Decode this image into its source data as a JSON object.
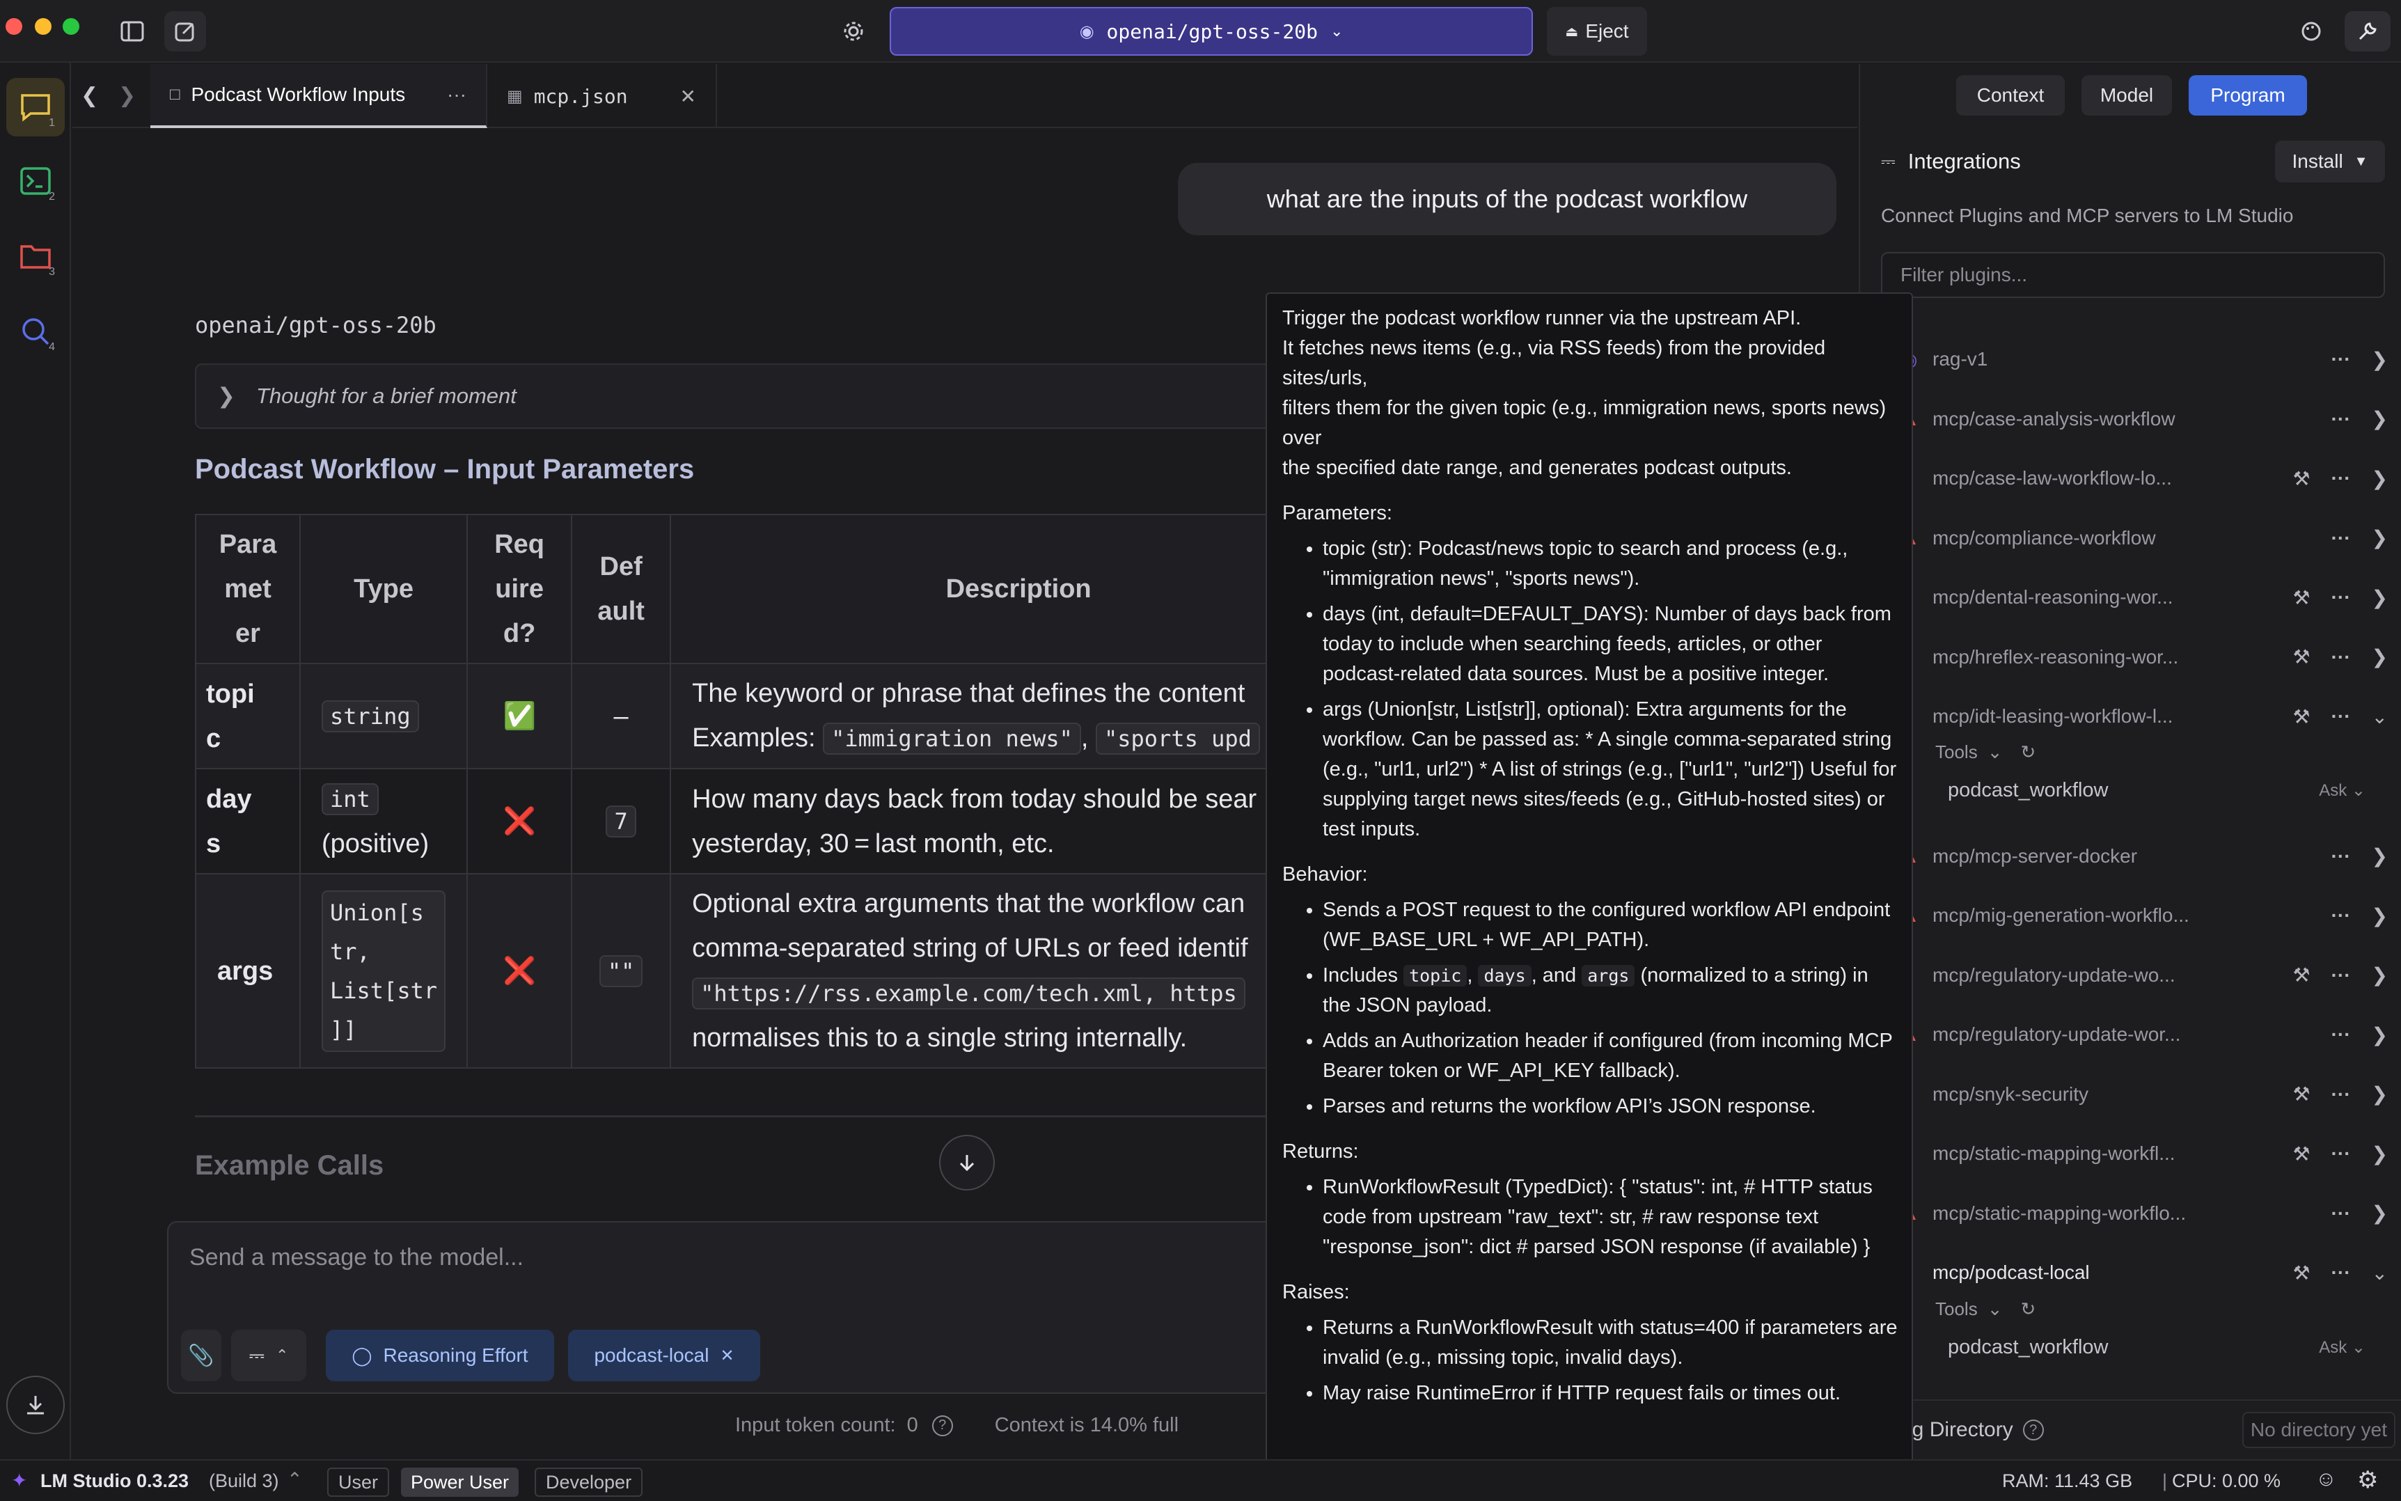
{
  "topbar": {
    "model_name": "openai/gpt-oss-20b",
    "eject_label": "Eject"
  },
  "rail": {
    "items": [
      {
        "badge": "1"
      },
      {
        "badge": "2"
      },
      {
        "badge": "3"
      },
      {
        "badge": "4"
      }
    ]
  },
  "tabs": [
    {
      "label": "Podcast Workflow Inputs"
    },
    {
      "label": "mcp.json"
    }
  ],
  "chat": {
    "user_message": "what are the inputs of the podcast workflow",
    "model_label": "openai/gpt-oss-20b",
    "thought": "Thought for a brief moment",
    "heading": "Podcast Workflow – Input Parameters",
    "table": {
      "headers": [
        "Para\nmet\ner",
        "Type",
        "Req\nuire\nd?",
        "Def\nault",
        "Description"
      ],
      "rows": [
        {
          "param": "topi\nc",
          "type_code": "string",
          "type_extra": "",
          "required": "✅",
          "default": "–",
          "default_is_code": false,
          "desc_line1": "The keyword or phrase that defines the content",
          "desc_line2_prefix": "Examples: ",
          "desc_code1": "\"immigration news\"",
          "desc_sep": ", ",
          "desc_code2": "\"sports upd"
        },
        {
          "param": "day\ns",
          "type_code": "int",
          "type_extra": "(positive)",
          "required": "❌",
          "default": "7",
          "default_is_code": true,
          "desc_line1": "How many days back from today should be sear",
          "desc_line2_prefix": "yesterday, 30 = last month, etc.",
          "desc_code1": "",
          "desc_sep": "",
          "desc_code2": ""
        },
        {
          "param": "args",
          "type_code": "Union[s\ntr,\nList[str\n]]",
          "type_extra": "",
          "required": "❌",
          "default": "\"\"",
          "default_is_code": true,
          "desc_line1": "Optional extra arguments that the workflow can",
          "desc_line2_prefix": "comma-separated string of URLs or feed identif",
          "desc_code1": "\"https://rss.example.com/tech.xml, https",
          "desc_sep": "",
          "desc_code2": "",
          "desc_line4": "normalises this to a single string internally."
        }
      ]
    },
    "examples_heading": "Example Calls"
  },
  "composer": {
    "placeholder": "Send a message to the model...",
    "reasoning_label": "Reasoning Effort",
    "plugin_chip": "podcast-local",
    "token_label": "Input token count:",
    "token_value": "0",
    "context_text": "Context is 14.0% full"
  },
  "rpanel": {
    "seg": [
      "Context",
      "Model",
      "Program"
    ],
    "integrations_title": "Integrations",
    "install_label": "Install",
    "subtitle": "Connect Plugins and MCP servers to LM Studio",
    "filter_placeholder": "Filter plugins...",
    "plugins": [
      {
        "name": "rag-v1",
        "warn": false,
        "tools": false
      },
      {
        "name": "mcp/case-analysis-workflow",
        "warn": true,
        "tools": false
      },
      {
        "name": "mcp/case-law-workflow-lo...",
        "warn": false,
        "tools": true
      },
      {
        "name": "mcp/compliance-workflow",
        "warn": true,
        "tools": false
      },
      {
        "name": "mcp/dental-reasoning-wor...",
        "warn": false,
        "tools": true
      },
      {
        "name": "mcp/hreflex-reasoning-wor...",
        "warn": false,
        "tools": true
      },
      {
        "name": "mcp/idt-leasing-workflow-l...",
        "warn": false,
        "tools": true
      },
      {
        "name": "mcp/mcp-server-docker",
        "warn": true,
        "tools": false
      },
      {
        "name": "mcp/mig-generation-workflo...",
        "warn": true,
        "tools": false
      },
      {
        "name": "mcp/regulatory-update-wo...",
        "warn": false,
        "tools": true
      },
      {
        "name": "mcp/regulatory-update-wor...",
        "warn": true,
        "tools": false
      },
      {
        "name": "mcp/snyk-security",
        "warn": false,
        "tools": true
      },
      {
        "name": "mcp/static-mapping-workfl...",
        "warn": false,
        "tools": true
      },
      {
        "name": "mcp/static-mapping-workflo...",
        "warn": true,
        "tools": false
      },
      {
        "name": "mcp/podcast-local",
        "warn": false,
        "tools": true
      }
    ],
    "tools_label": "Tools",
    "tool_name": "podcast_workflow",
    "tool_ask": "Ask",
    "working_dir_label": "ng Directory",
    "no_dir": "No directory yet"
  },
  "tooltip": {
    "intro": [
      "Trigger the podcast workflow runner via the upstream API.",
      "It fetches news items (e.g., via RSS feeds) from the provided sites/urls,",
      "filters them for the given topic (e.g., immigration news, sports news) over",
      "the specified date range, and generates podcast outputs."
    ],
    "params_title": "Parameters:",
    "params": [
      "topic (str): Podcast/news topic to search and process (e.g., \"immigration news\", \"sports news\").",
      "days (int, default=DEFAULT_DAYS): Number of days back from today to include when searching feeds, articles, or other podcast-related data sources. Must be a positive integer.",
      "args (Union[str, List[str]], optional): Extra arguments for the workflow. Can be passed as: * A single comma-separated string (e.g., \"url1, url2\") * A list of strings (e.g., [\"url1\", \"url2\"]) Useful for supplying target news sites/feeds (e.g., GitHub-hosted sites) or test inputs."
    ],
    "behavior_title": "Behavior:",
    "behavior1": "Sends a POST request to the configured workflow API endpoint (WF_BASE_URL + WF_API_PATH).",
    "behavior2_a": "Includes ",
    "behavior2_c1": "topic",
    "behavior2_s1": ", ",
    "behavior2_c2": "days",
    "behavior2_s2": ", and ",
    "behavior2_c3": "args",
    "behavior2_b": " (normalized to a string) in the JSON payload.",
    "behavior3": "Adds an Authorization header if configured (from incoming MCP Bearer token or WF_API_KEY fallback).",
    "behavior4": "Parses and returns the workflow API’s JSON response.",
    "returns_title": "Returns:",
    "returns": "RunWorkflowResult (TypedDict): { \"status\": int, # HTTP status code from upstream \"raw_text\": str, # raw response text \"response_json\": dict # parsed JSON response (if available) }",
    "raises_title": "Raises:",
    "raises": [
      "Returns a RunWorkflowResult with status=400 if parameters are invalid (e.g., missing topic, invalid days).",
      "May raise RuntimeError if HTTP request fails or times out."
    ]
  },
  "statusbar": {
    "app": "LM Studio 0.3.23",
    "build": "(Build 3)",
    "modes": [
      "User",
      "Power User",
      "Developer"
    ],
    "ram": "RAM: 11.43 GB",
    "sep": "|",
    "cpu": "CPU: 0.00 %"
  },
  "colors": {
    "accent": "#3b66d9",
    "model_picker": "#3b3588",
    "rail_active": "#e8c34a",
    "warn": "#e0524c"
  }
}
